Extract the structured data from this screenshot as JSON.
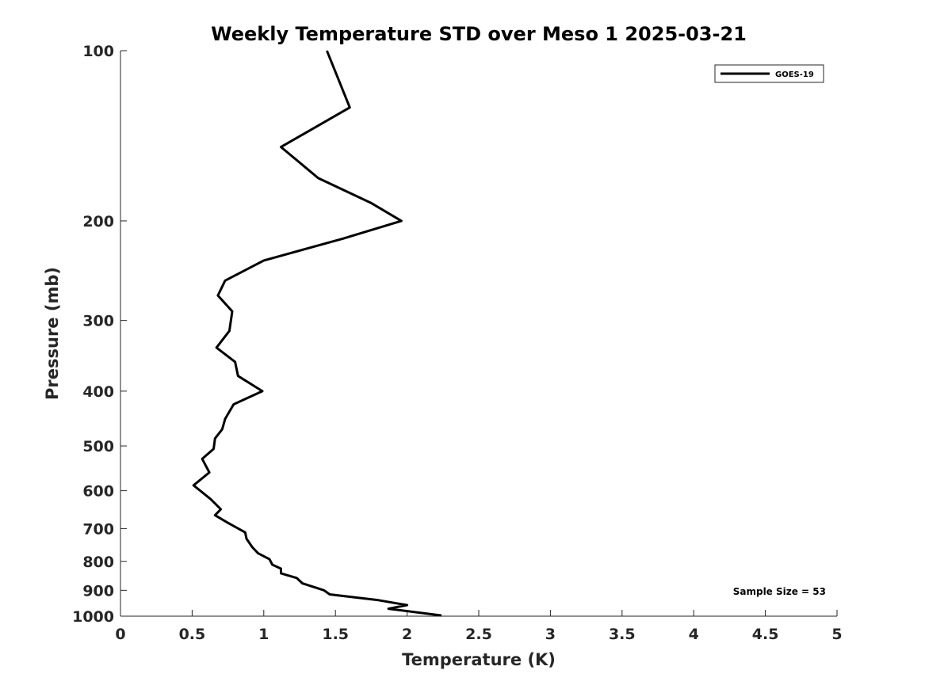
{
  "chart_data": {
    "type": "line",
    "title": "Weekly Temperature STD over Meso 1 2025-03-21",
    "xlabel": "Temperature (K)",
    "ylabel": "Pressure (mb)",
    "xlim": [
      0,
      5
    ],
    "ylim": [
      100,
      1000
    ],
    "yscale": "log",
    "y_reversed": true,
    "xticks": [
      {
        "value": 0,
        "label": "0"
      },
      {
        "value": 0.5,
        "label": "0.5"
      },
      {
        "value": 1,
        "label": "1"
      },
      {
        "value": 1.5,
        "label": "1.5"
      },
      {
        "value": 2,
        "label": "2"
      },
      {
        "value": 2.5,
        "label": "2.5"
      },
      {
        "value": 3,
        "label": "3"
      },
      {
        "value": 3.5,
        "label": "3.5"
      },
      {
        "value": 4,
        "label": "4"
      },
      {
        "value": 4.5,
        "label": "4.5"
      },
      {
        "value": 5,
        "label": "5"
      }
    ],
    "yticks": [
      {
        "value": 100,
        "label": "100"
      },
      {
        "value": 200,
        "label": "200"
      },
      {
        "value": 300,
        "label": "300"
      },
      {
        "value": 400,
        "label": "400"
      },
      {
        "value": 500,
        "label": "500"
      },
      {
        "value": 600,
        "label": "600"
      },
      {
        "value": 700,
        "label": "700"
      },
      {
        "value": 800,
        "label": "800"
      },
      {
        "value": 900,
        "label": "900"
      },
      {
        "value": 1000,
        "label": "1000"
      }
    ],
    "grid": false,
    "legend_position": "top-right",
    "annotation": "Sample Size = 53",
    "series": [
      {
        "name": "GOES-19",
        "color": "#000000",
        "points": [
          [
            1.44,
            100
          ],
          [
            1.6,
            126
          ],
          [
            1.12,
            148
          ],
          [
            1.38,
            168
          ],
          [
            1.75,
            186
          ],
          [
            1.96,
            200
          ],
          [
            1.55,
            215
          ],
          [
            1.0,
            235
          ],
          [
            0.73,
            255
          ],
          [
            0.68,
            271
          ],
          [
            0.78,
            289
          ],
          [
            0.76,
            313
          ],
          [
            0.67,
            335
          ],
          [
            0.8,
            355
          ],
          [
            0.82,
            376
          ],
          [
            0.99,
            400
          ],
          [
            0.79,
            422
          ],
          [
            0.73,
            448
          ],
          [
            0.71,
            467
          ],
          [
            0.66,
            485
          ],
          [
            0.65,
            506
          ],
          [
            0.57,
            527
          ],
          [
            0.62,
            557
          ],
          [
            0.51,
            587
          ],
          [
            0.63,
            621
          ],
          [
            0.7,
            647
          ],
          [
            0.66,
            663
          ],
          [
            0.75,
            684
          ],
          [
            0.87,
            711
          ],
          [
            0.88,
            730
          ],
          [
            0.92,
            755
          ],
          [
            0.96,
            774
          ],
          [
            1.04,
            793
          ],
          [
            1.06,
            811
          ],
          [
            1.12,
            824
          ],
          [
            1.12,
            840
          ],
          [
            1.23,
            856
          ],
          [
            1.27,
            875
          ],
          [
            1.42,
            900
          ],
          [
            1.46,
            915
          ],
          [
            1.8,
            937
          ],
          [
            2.0,
            956
          ],
          [
            1.87,
            970
          ],
          [
            2.24,
            997
          ]
        ]
      }
    ]
  }
}
